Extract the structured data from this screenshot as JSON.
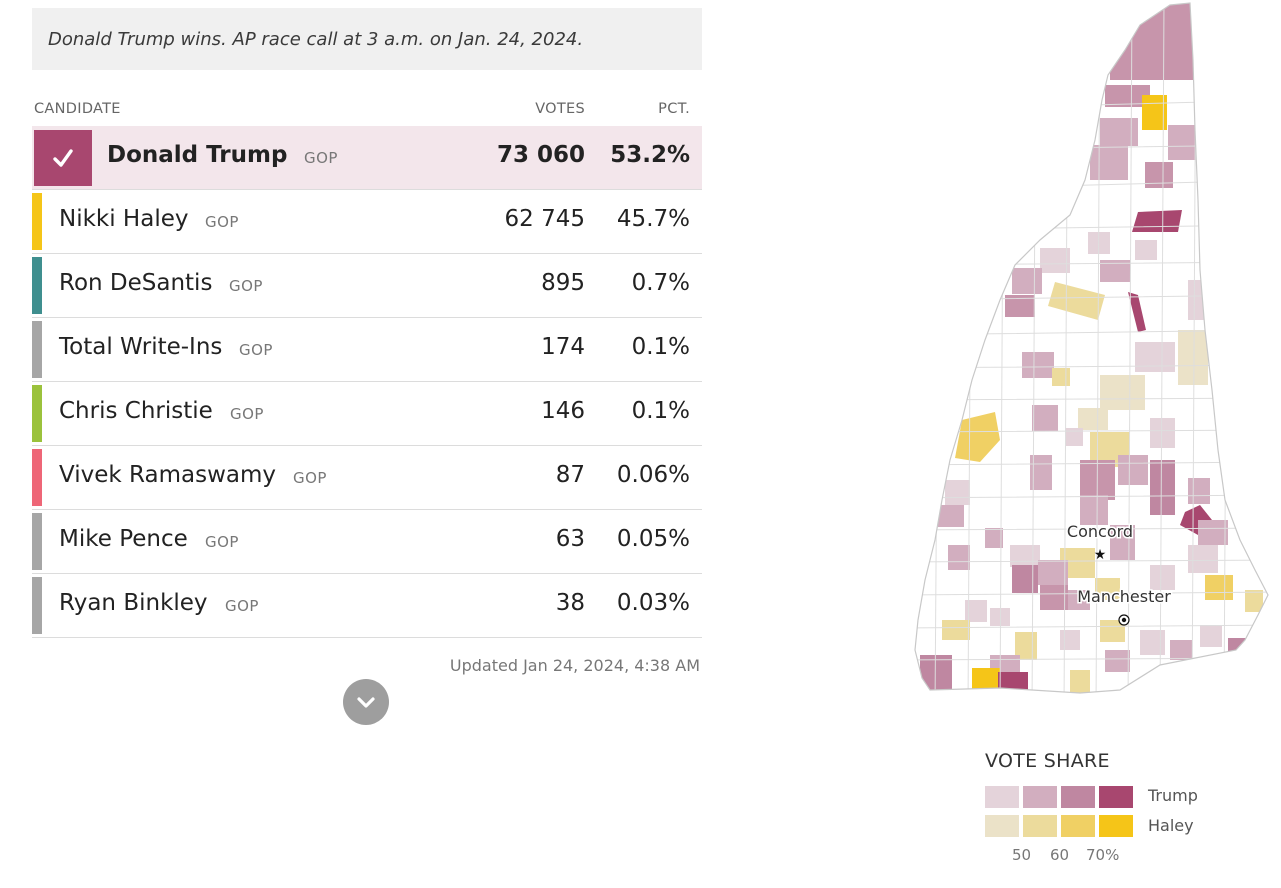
{
  "banner": {
    "text": "Donald Trump wins. AP race call at 3 a.m. on Jan. 24, 2024."
  },
  "table": {
    "headers": {
      "candidate": "CANDIDATE",
      "votes": "VOTES",
      "pct": "PCT."
    },
    "rows": [
      {
        "name": "Donald Trump",
        "party": "GOP",
        "votes": "73 060",
        "pct": "53.2%",
        "color": "#a8476f",
        "winner": true
      },
      {
        "name": "Nikki Haley",
        "party": "GOP",
        "votes": "62 745",
        "pct": "45.7%",
        "color": "#f5c518"
      },
      {
        "name": "Ron DeSantis",
        "party": "GOP",
        "votes": "895",
        "pct": "0.7%",
        "color": "#3f8f8f"
      },
      {
        "name": "Total Write-Ins",
        "party": "GOP",
        "votes": "174",
        "pct": "0.1%",
        "color": "#a6a6a6"
      },
      {
        "name": "Chris Christie",
        "party": "GOP",
        "votes": "146",
        "pct": "0.1%",
        "color": "#9bc23c"
      },
      {
        "name": "Vivek Ramaswamy",
        "party": "GOP",
        "votes": "87",
        "pct": "0.06%",
        "color": "#ee6677"
      },
      {
        "name": "Mike Pence",
        "party": "GOP",
        "votes": "63",
        "pct": "0.05%",
        "color": "#a6a6a6"
      },
      {
        "name": "Ryan Binkley",
        "party": "GOP",
        "votes": "38",
        "pct": "0.03%",
        "color": "#a6a6a6"
      }
    ],
    "updated": "Updated Jan 24, 2024, 4:38 AM",
    "expand_icon": "chevron-down-icon"
  },
  "map": {
    "cities": [
      {
        "name": "Concord",
        "marker": "star"
      },
      {
        "name": "Manchester",
        "marker": "dot"
      }
    ]
  },
  "legend": {
    "title": "VOTE SHARE",
    "trump_label": "Trump",
    "haley_label": "Haley",
    "trump_colors": [
      "#e4d3da",
      "#d2aebf",
      "#bf87a1",
      "#a8476f"
    ],
    "haley_colors": [
      "#ebe2c8",
      "#ecdb9c",
      "#f0d064",
      "#f5c518"
    ],
    "ticks": [
      "50",
      "60",
      "70%"
    ]
  }
}
